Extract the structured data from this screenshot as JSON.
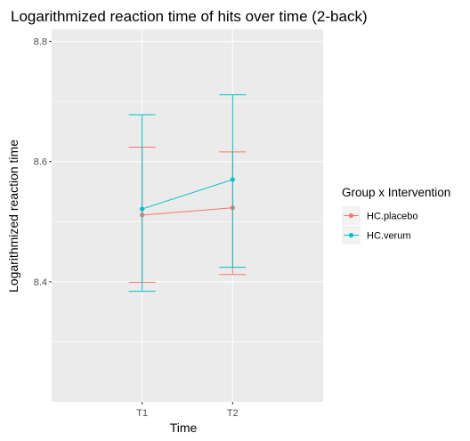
{
  "chart_data": {
    "type": "line",
    "title": "Logarithmized reaction time of hits over time (2-back)",
    "xlabel": "Time",
    "ylabel": "Logarithmized reaction time",
    "categories": [
      "T1",
      "T2"
    ],
    "ylim": [
      8.2,
      8.82
    ],
    "yticks": [
      8.4,
      8.6,
      8.8
    ],
    "ytick_labels": [
      "8.4",
      "8.6",
      "8.8"
    ],
    "legend": {
      "title": "Group x Intervention",
      "position": "right"
    },
    "series": [
      {
        "name": "HC.placebo",
        "color": "#F8766D",
        "values": [
          8.511,
          8.523
        ],
        "error_lower": [
          8.399,
          8.412
        ],
        "error_upper": [
          8.624,
          8.616
        ]
      },
      {
        "name": "HC.verum",
        "color": "#00BFC4",
        "values": [
          8.521,
          8.57
        ],
        "error_lower": [
          8.384,
          8.424
        ],
        "error_upper": [
          8.678,
          8.711
        ]
      }
    ]
  }
}
